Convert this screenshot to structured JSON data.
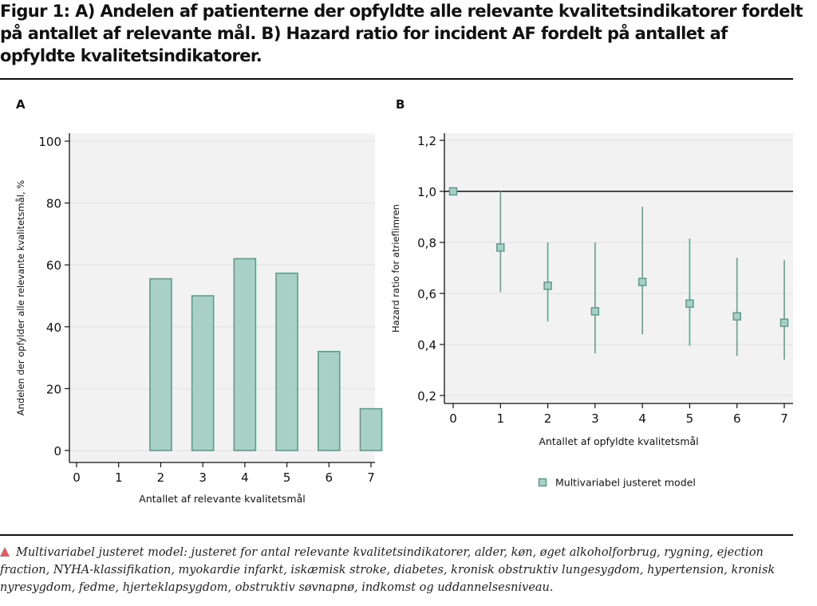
{
  "figure": {
    "title": "Figur 1: A) Andelen af patienterne der opfyldte alle relevante kvalitetsindikatorer fordelt på antallet af relevante mål. B) Hazard ratio for incident AF fordelt på antallet af opfyldte kvalitetsindikatorer.",
    "footnote": "Multivariabel justeret model: justeret for antal relevante kvalitetsindikatorer, alder, køn, øget alkoholforbrug, rygning, ejection fraction, NYHA-klassifikation, myokardie infarkt, iskæmisk stroke, diabetes, kronisk obstruktiv lungesygdom, hypertension, kronisk nyresygdom, fedme, hjerteklapsygdom, obstruktiv søvnapnø, indkomst og uddannelsesniveau.",
    "footnote_icon": "warning-triangle-icon",
    "colors": {
      "bar_fill": "#a8d0c6",
      "bar_stroke": "#5e9c8a",
      "marker_fill": "#a8d0c6",
      "marker_stroke": "#5e9c8a",
      "errorbar": "#6fa796",
      "plot_bg": "#f2f2f2",
      "grid": "#e6e6e6",
      "footnote_icon": "#e05a6a"
    }
  },
  "chart_data": [
    {
      "panel": "A",
      "type": "bar",
      "categories": [
        "0",
        "1",
        "2",
        "3",
        "4",
        "5",
        "6",
        "7"
      ],
      "values": [
        null,
        null,
        55.5,
        50,
        62,
        57.3,
        32,
        13.5
      ],
      "xlabel": "Antallet af relevante kvalitetsmål",
      "ylabel": "Andelen der opfylder alle relevante kvalitetsmål, %",
      "ylim": [
        0,
        100
      ],
      "yticks": [
        "0",
        "20",
        "40",
        "60",
        "80",
        "100"
      ],
      "grid": true
    },
    {
      "panel": "B",
      "type": "scatter",
      "x": [
        "0",
        "1",
        "2",
        "3",
        "4",
        "5",
        "6",
        "7"
      ],
      "series": [
        {
          "name": "Multivariabel justeret model",
          "values": [
            1.0,
            0.78,
            0.63,
            0.53,
            0.645,
            0.56,
            0.51,
            0.485
          ],
          "lower": [
            null,
            0.605,
            0.49,
            0.365,
            0.44,
            0.395,
            0.355,
            0.34
          ],
          "upper": [
            null,
            1.0,
            0.8,
            0.8,
            0.94,
            0.815,
            0.74,
            0.73
          ]
        }
      ],
      "xlabel": "Antallet af opfyldte kvalitetsmål",
      "ylabel": "Hazard ratio for atrieflimren",
      "ylim": [
        0.2,
        1.2
      ],
      "yticks": [
        "0,2",
        "0,4",
        "0,6",
        "0,8",
        "1,0",
        "1,2"
      ],
      "reference_line": 1.0,
      "legend": "bottom",
      "grid": true
    }
  ]
}
